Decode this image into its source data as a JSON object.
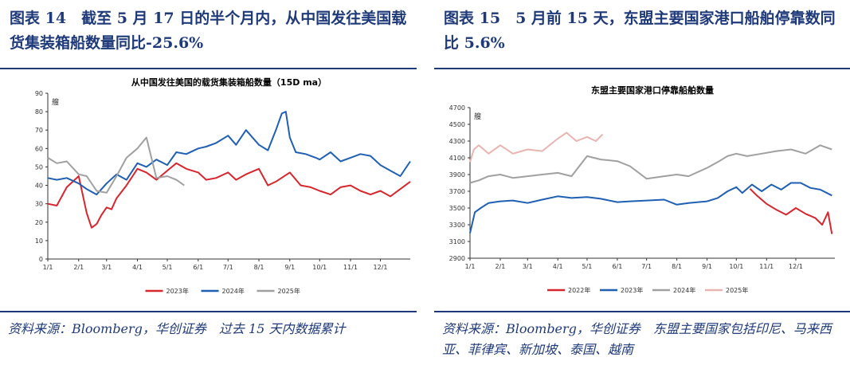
{
  "left": {
    "fig_label": "图表 14",
    "fig_title": "截至 5 月 17 日的半个月内，从中国发往美国载货集装箱船数量同比-25.6%",
    "source": "资料来源：Bloomberg，华创证券　过去 15 天内数据累计"
  },
  "right": {
    "fig_label": "图表 15",
    "fig_title": "5 月前 15 天，东盟主要国家港口船舶停靠数同比 5.6%",
    "source": "资料来源：Bloomberg，华创证券　东盟主要国家包括印尼、马来西亚、菲律宾、新加坡、泰国、越南"
  },
  "chart_data": [
    {
      "type": "line",
      "title": "从中国发往美国的载货集装箱船数量（15D ma）",
      "ylabel": "艘",
      "ylim": [
        0,
        90
      ],
      "yticks": [
        "0",
        "10",
        "20",
        "30",
        "40",
        "50",
        "60",
        "70",
        "80",
        "90"
      ],
      "x_ticks": [
        "1/1",
        "2/1",
        "3/1",
        "4/1",
        "5/1",
        "6/1",
        "7/1",
        "8/1",
        "9/1",
        "10/1",
        "11/1",
        "12/1"
      ],
      "x_tick_pos": [
        1,
        32,
        60,
        91,
        121,
        152,
        182,
        213,
        244,
        274,
        305,
        335
      ],
      "xlim": [
        1,
        365
      ],
      "legend_position": "bottom",
      "series": [
        {
          "name": "2023年",
          "color": "#d7262e",
          "x": [
            1,
            10,
            20,
            32,
            40,
            45,
            50,
            55,
            60,
            65,
            70,
            80,
            91,
            100,
            110,
            121,
            130,
            140,
            152,
            160,
            170,
            182,
            190,
            200,
            213,
            222,
            230,
            244,
            255,
            265,
            274,
            285,
            295,
            305,
            315,
            325,
            335,
            345,
            355,
            365
          ],
          "y": [
            30,
            29,
            39,
            45,
            25,
            17,
            19,
            24,
            28,
            27,
            33,
            40,
            49,
            47,
            43,
            48,
            52,
            49,
            47,
            43,
            44,
            47,
            43,
            46,
            49,
            40,
            42,
            47,
            40,
            39,
            37,
            35,
            39,
            40,
            37,
            35,
            37,
            34,
            38,
            42
          ]
        },
        {
          "name": "2024年",
          "color": "#1f5fb4",
          "x": [
            1,
            10,
            20,
            32,
            40,
            50,
            60,
            70,
            80,
            91,
            100,
            110,
            121,
            130,
            140,
            152,
            160,
            170,
            182,
            190,
            200,
            213,
            222,
            230,
            236,
            240,
            244,
            250,
            260,
            270,
            274,
            285,
            295,
            305,
            315,
            325,
            335,
            345,
            355,
            365
          ],
          "y": [
            44,
            43,
            44,
            41,
            38,
            35,
            41,
            46,
            43,
            52,
            50,
            54,
            51,
            58,
            57,
            60,
            61,
            63,
            67,
            62,
            70,
            62,
            59,
            70,
            79,
            80,
            66,
            58,
            57,
            55,
            54,
            58,
            53,
            55,
            57,
            56,
            51,
            48,
            45,
            53
          ]
        },
        {
          "name": "2025年",
          "color": "#a0a0a0",
          "x": [
            1,
            10,
            20,
            32,
            40,
            50,
            60,
            70,
            80,
            91,
            100,
            110,
            121,
            130,
            138
          ],
          "y": [
            55,
            52,
            53,
            46,
            45,
            37,
            36,
            45,
            55,
            60,
            66,
            44,
            45,
            43,
            40
          ]
        }
      ]
    },
    {
      "type": "line",
      "title": "东盟主要国家港口停靠船舶数量",
      "ylabel": "艘",
      "ylim": [
        2900,
        4700
      ],
      "yticks": [
        "2900",
        "3100",
        "3300",
        "3500",
        "3700",
        "3900",
        "4100",
        "4300",
        "4500",
        "4700"
      ],
      "x_ticks": [
        "1/1",
        "2/1",
        "3/1",
        "4/1",
        "5/1",
        "6/1",
        "7/1",
        "8/1",
        "9/1",
        "10/1",
        "11/1",
        "12/1"
      ],
      "x_tick_pos": [
        1,
        32,
        60,
        91,
        121,
        152,
        182,
        213,
        244,
        274,
        305,
        335
      ],
      "xlim": [
        1,
        375
      ],
      "legend_position": "bottom",
      "series": [
        {
          "name": "2022年",
          "color": "#d7262e",
          "x": [
            288,
            295,
            305,
            315,
            325,
            335,
            345,
            355,
            362,
            368,
            372
          ],
          "y": [
            3730,
            3650,
            3550,
            3480,
            3420,
            3500,
            3430,
            3380,
            3300,
            3450,
            3190
          ]
        },
        {
          "name": "2023年",
          "color": "#1f5fb4",
          "x": [
            1,
            6,
            12,
            20,
            32,
            45,
            60,
            75,
            91,
            105,
            121,
            135,
            152,
            165,
            182,
            200,
            213,
            225,
            244,
            255,
            265,
            274,
            280,
            290,
            300,
            310,
            320,
            330,
            340,
            350,
            360,
            372
          ],
          "y": [
            3200,
            3450,
            3500,
            3560,
            3580,
            3590,
            3560,
            3600,
            3640,
            3620,
            3630,
            3610,
            3570,
            3580,
            3590,
            3600,
            3540,
            3560,
            3580,
            3620,
            3700,
            3750,
            3680,
            3780,
            3700,
            3780,
            3720,
            3800,
            3800,
            3740,
            3720,
            3650
          ]
        },
        {
          "name": "2024年",
          "color": "#a0a0a0",
          "x": [
            1,
            10,
            20,
            32,
            45,
            60,
            75,
            91,
            105,
            121,
            135,
            152,
            165,
            182,
            200,
            213,
            225,
            244,
            255,
            265,
            274,
            285,
            300,
            315,
            330,
            345,
            360,
            372
          ],
          "y": [
            3800,
            3830,
            3880,
            3900,
            3860,
            3880,
            3900,
            3920,
            3880,
            4120,
            4080,
            4060,
            4000,
            3850,
            3880,
            3900,
            3880,
            3980,
            4050,
            4120,
            4150,
            4120,
            4150,
            4180,
            4200,
            4150,
            4250,
            4200
          ]
        },
        {
          "name": "2025年",
          "color": "#e8b4b0",
          "x": [
            1,
            5,
            10,
            20,
            32,
            45,
            60,
            75,
            91,
            100,
            110,
            121,
            130,
            137
          ],
          "y": [
            4050,
            4200,
            4250,
            4150,
            4250,
            4150,
            4200,
            4180,
            4330,
            4400,
            4300,
            4350,
            4300,
            4380
          ]
        }
      ]
    }
  ]
}
